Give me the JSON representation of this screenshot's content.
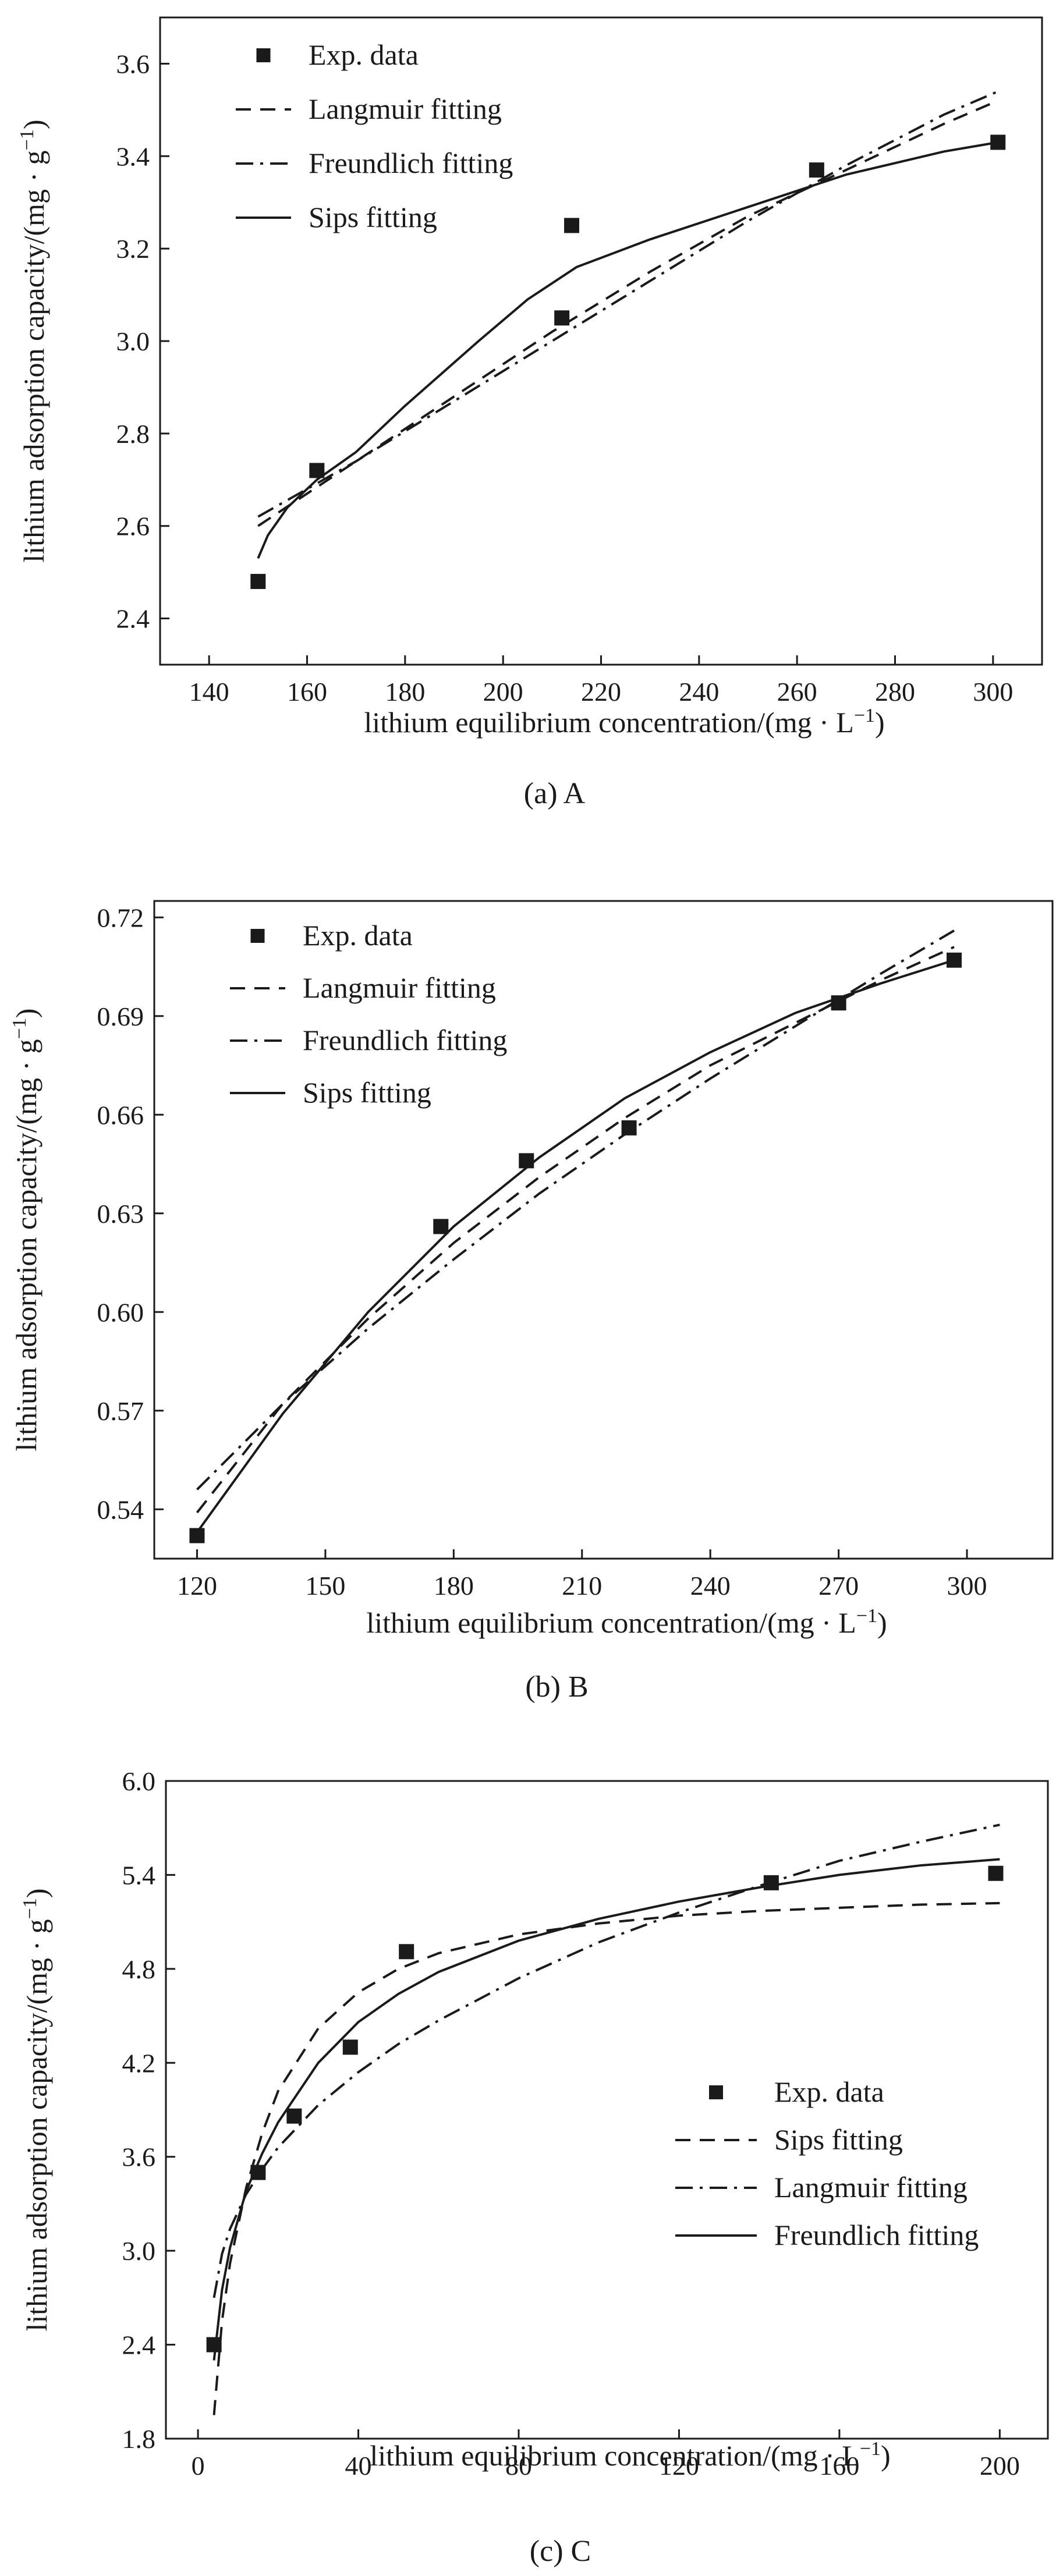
{
  "chart_data": [
    {
      "type": "scatter",
      "caption": "(a) A",
      "xlabel": "lithium equilibrium concentration/(mg · L",
      "xlabel_sup": "−1",
      "xlabel_end": ")",
      "ylabel": "lithium adsorption capacity/(mg · g",
      "ylabel_sup": "−1",
      "ylabel_end": ")",
      "xlim": [
        130,
        310
      ],
      "ylim": [
        2.3,
        3.7
      ],
      "x_ticks": [
        140,
        160,
        180,
        200,
        220,
        240,
        260,
        280,
        300
      ],
      "y_ticks": [
        2.4,
        2.6,
        2.8,
        3.0,
        3.2,
        3.4,
        3.6
      ],
      "x_tick_labels": [
        "140",
        "160",
        "180",
        "200",
        "220",
        "240",
        "260",
        "280",
        "300"
      ],
      "y_tick_labels": [
        "2.4",
        "2.6",
        "2.8",
        "3.0",
        "3.2",
        "3.4",
        "3.6"
      ],
      "legend_position": "top-left",
      "series": [
        {
          "name": "Exp. data",
          "style": "markers",
          "x": [
            150,
            162,
            212,
            214,
            264,
            301
          ],
          "y": [
            2.48,
            2.72,
            3.05,
            3.25,
            3.37,
            3.43
          ]
        },
        {
          "name": "Langmuir fitting",
          "style": "dashed",
          "x": [
            150,
            170,
            190,
            210,
            230,
            250,
            270,
            290,
            301
          ],
          "y": [
            2.6,
            2.74,
            2.88,
            3.02,
            3.15,
            3.27,
            3.37,
            3.47,
            3.52
          ]
        },
        {
          "name": "Freundlich fitting",
          "style": "dashdot",
          "x": [
            150,
            170,
            190,
            210,
            230,
            250,
            270,
            290,
            301
          ],
          "y": [
            2.62,
            2.74,
            2.87,
            3.0,
            3.13,
            3.26,
            3.38,
            3.49,
            3.54
          ]
        },
        {
          "name": "Sips fitting",
          "style": "solid",
          "x": [
            150,
            152,
            156,
            162,
            170,
            180,
            195,
            205,
            215,
            230,
            250,
            270,
            290,
            301
          ],
          "y": [
            2.53,
            2.58,
            2.64,
            2.7,
            2.76,
            2.86,
            3.0,
            3.09,
            3.16,
            3.22,
            3.29,
            3.36,
            3.41,
            3.43
          ]
        }
      ]
    },
    {
      "type": "scatter",
      "caption": "(b) B",
      "xlabel": "lithium equilibrium concentration/(mg · L",
      "xlabel_sup": "−1",
      "xlabel_end": ")",
      "ylabel": "lithium adsorption capacity/(mg · g",
      "ylabel_sup": "−1",
      "ylabel_end": ")",
      "xlim": [
        110,
        320
      ],
      "ylim": [
        0.525,
        0.725
      ],
      "x_ticks": [
        120,
        150,
        180,
        210,
        240,
        270,
        300
      ],
      "y_ticks": [
        0.54,
        0.57,
        0.6,
        0.63,
        0.66,
        0.69,
        0.72
      ],
      "x_tick_labels": [
        "120",
        "150",
        "180",
        "210",
        "240",
        "270",
        "300"
      ],
      "y_tick_labels": [
        "0.54",
        "0.57",
        "0.60",
        "0.63",
        "0.66",
        "0.69",
        "0.72"
      ],
      "legend_position": "top-left",
      "series": [
        {
          "name": "Exp. data",
          "style": "markers",
          "x": [
            120,
            177,
            197,
            221,
            270,
            297
          ],
          "y": [
            0.532,
            0.626,
            0.646,
            0.656,
            0.694,
            0.707
          ]
        },
        {
          "name": "Langmuir fitting",
          "style": "dashed",
          "x": [
            120,
            140,
            160,
            180,
            200,
            220,
            240,
            260,
            280,
            297
          ],
          "y": [
            0.539,
            0.572,
            0.598,
            0.621,
            0.641,
            0.659,
            0.675,
            0.688,
            0.701,
            0.711
          ]
        },
        {
          "name": "Freundlich fitting",
          "style": "dashdot",
          "x": [
            120,
            140,
            160,
            180,
            200,
            220,
            240,
            260,
            280,
            297
          ],
          "y": [
            0.546,
            0.572,
            0.595,
            0.616,
            0.636,
            0.654,
            0.671,
            0.687,
            0.703,
            0.716
          ]
        },
        {
          "name": "Sips fitting",
          "style": "solid",
          "x": [
            120,
            140,
            160,
            180,
            200,
            220,
            240,
            260,
            280,
            297
          ],
          "y": [
            0.533,
            0.569,
            0.6,
            0.626,
            0.647,
            0.665,
            0.679,
            0.691,
            0.7,
            0.707
          ]
        }
      ]
    },
    {
      "type": "scatter",
      "caption": "(c) C",
      "xlabel": "lithium equilibrium concentration/(mg · L",
      "xlabel_sup": "−1",
      "xlabel_end": ")",
      "ylabel": "lithium adsorption capacity/(mg · g",
      "ylabel_sup": "−1",
      "ylabel_end": ")",
      "xlim": [
        -8,
        212
      ],
      "ylim": [
        1.8,
        6.0
      ],
      "x_ticks": [
        0,
        40,
        80,
        120,
        160,
        200
      ],
      "y_ticks": [
        1.8,
        2.4,
        3.0,
        3.6,
        4.2,
        4.8,
        5.4,
        6.0
      ],
      "x_tick_labels": [
        "0",
        "40",
        "80",
        "120",
        "160",
        "200"
      ],
      "y_tick_labels": [
        "1.8",
        "2.4",
        "3.0",
        "3.6",
        "4.2",
        "4.8",
        "5.4",
        "6.0"
      ],
      "legend_position": "center-right",
      "series": [
        {
          "name": "Exp. data",
          "style": "markers",
          "x": [
            4,
            15,
            24,
            38,
            52,
            143,
            199
          ],
          "y": [
            2.4,
            3.5,
            3.86,
            4.3,
            4.91,
            5.35,
            5.41
          ]
        },
        {
          "name": "Sips fitting",
          "style": "dashed",
          "x": [
            4,
            6,
            8,
            12,
            16,
            20,
            30,
            40,
            50,
            60,
            80,
            100,
            120,
            140,
            160,
            180,
            200
          ],
          "y": [
            1.95,
            2.55,
            2.92,
            3.4,
            3.75,
            4.02,
            4.42,
            4.65,
            4.8,
            4.9,
            5.02,
            5.09,
            5.14,
            5.17,
            5.19,
            5.21,
            5.22
          ]
        },
        {
          "name": "Langmuir fitting",
          "style": "dashdot",
          "x": [
            4,
            6,
            8,
            12,
            16,
            20,
            30,
            40,
            50,
            60,
            80,
            100,
            120,
            140,
            160,
            180,
            200
          ],
          "y": [
            2.7,
            2.98,
            3.14,
            3.36,
            3.52,
            3.66,
            3.93,
            4.14,
            4.32,
            4.47,
            4.74,
            4.97,
            5.16,
            5.33,
            5.49,
            5.61,
            5.72
          ]
        },
        {
          "name": "Freundlich fitting",
          "style": "solid",
          "x": [
            4,
            6,
            8,
            12,
            16,
            20,
            30,
            40,
            50,
            60,
            80,
            100,
            120,
            140,
            160,
            180,
            200
          ],
          "y": [
            2.3,
            2.75,
            3.02,
            3.38,
            3.62,
            3.82,
            4.2,
            4.46,
            4.64,
            4.78,
            4.98,
            5.12,
            5.23,
            5.32,
            5.4,
            5.46,
            5.5
          ]
        }
      ]
    }
  ]
}
